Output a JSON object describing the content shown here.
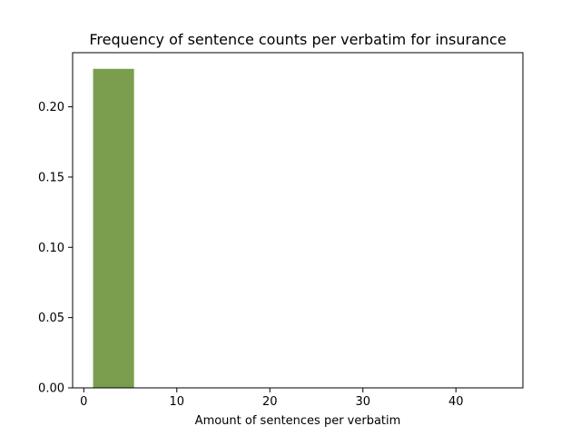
{
  "chart_data": {
    "type": "bar",
    "title": "Frequency of sentence counts per verbatim for insurance",
    "xlabel": "Amount of sentences per verbatim",
    "ylabel": "",
    "xlim": [
      -1.2,
      47.2
    ],
    "ylim": [
      0,
      0.2385
    ],
    "xticks": [
      0,
      10,
      20,
      30,
      40
    ],
    "xtick_labels": [
      "0",
      "10",
      "20",
      "30",
      "40"
    ],
    "yticks": [
      0,
      0.05,
      0.1,
      0.15,
      0.2
    ],
    "ytick_labels": [
      "0.00",
      "0.05",
      "0.10",
      "0.15",
      "0.20"
    ],
    "bars": [
      {
        "x0": 1.0,
        "x1": 5.4,
        "value": 0.227
      }
    ],
    "bar_color": "#7a9e4e",
    "grid": false
  }
}
